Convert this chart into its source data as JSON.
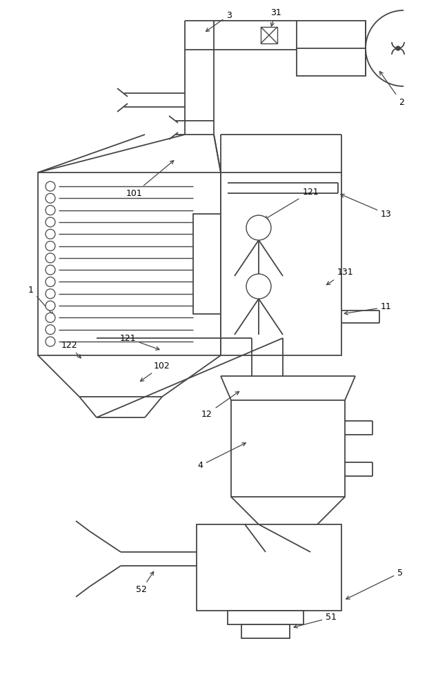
{
  "bg_color": "#ffffff",
  "line_color": "#444444",
  "line_width": 1.3,
  "fig_width": 6.19,
  "fig_height": 10.0
}
